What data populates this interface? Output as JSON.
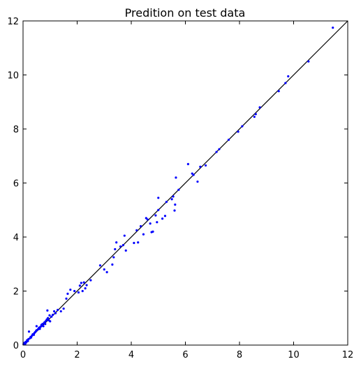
{
  "chart_data": {
    "type": "scatter",
    "title": "Predition on test data",
    "xlabel": "",
    "ylabel": "",
    "xlim": [
      0,
      12
    ],
    "ylim": [
      0,
      12
    ],
    "xticks": [
      0,
      2,
      4,
      6,
      8,
      10,
      12
    ],
    "yticks": [
      0,
      2,
      4,
      6,
      8,
      10,
      12
    ],
    "grid": false,
    "legend": "none",
    "point_color": "#0000ff",
    "line_color": "#000000",
    "reference_line": {
      "x": [
        0,
        12
      ],
      "y": [
        0,
        12
      ]
    },
    "series": [
      {
        "points": [
          [
            0.02,
            0.03
          ],
          [
            0.05,
            0.08
          ],
          [
            0.08,
            0.04
          ],
          [
            0.1,
            0.12
          ],
          [
            0.12,
            0.1
          ],
          [
            0.15,
            0.18
          ],
          [
            0.18,
            0.15
          ],
          [
            0.2,
            0.22
          ],
          [
            0.22,
            0.5
          ],
          [
            0.25,
            0.25
          ],
          [
            0.28,
            0.3
          ],
          [
            0.3,
            0.28
          ],
          [
            0.33,
            0.35
          ],
          [
            0.36,
            0.4
          ],
          [
            0.4,
            0.38
          ],
          [
            0.42,
            0.45
          ],
          [
            0.45,
            0.48
          ],
          [
            0.48,
            0.52
          ],
          [
            0.5,
            0.55
          ],
          [
            0.5,
            0.7
          ],
          [
            0.55,
            0.58
          ],
          [
            0.58,
            0.62
          ],
          [
            0.6,
            0.65
          ],
          [
            0.62,
            0.6
          ],
          [
            0.65,
            0.68
          ],
          [
            0.68,
            0.75
          ],
          [
            0.7,
            0.72
          ],
          [
            0.72,
            0.78
          ],
          [
            0.75,
            0.7
          ],
          [
            0.78,
            0.82
          ],
          [
            0.8,
            0.85
          ],
          [
            0.82,
            0.78
          ],
          [
            0.85,
            0.9
          ],
          [
            0.88,
            0.95
          ],
          [
            0.9,
            1.28
          ],
          [
            0.92,
            1.0
          ],
          [
            0.95,
            0.92
          ],
          [
            0.98,
            1.1
          ],
          [
            1.0,
            0.88
          ],
          [
            1.05,
            1.05
          ],
          [
            1.1,
            1.12
          ],
          [
            1.15,
            1.25
          ],
          [
            1.2,
            1.18
          ],
          [
            1.28,
            1.3
          ],
          [
            1.4,
            1.25
          ],
          [
            1.5,
            1.35
          ],
          [
            1.6,
            1.72
          ],
          [
            1.65,
            1.9
          ],
          [
            1.75,
            2.05
          ],
          [
            1.9,
            2.0
          ],
          [
            2.05,
            1.95
          ],
          [
            2.1,
            2.2
          ],
          [
            2.15,
            2.3
          ],
          [
            2.2,
            2.0
          ],
          [
            2.25,
            2.32
          ],
          [
            2.3,
            2.1
          ],
          [
            2.35,
            2.22
          ],
          [
            2.5,
            2.4
          ],
          [
            2.85,
            2.95
          ],
          [
            3.0,
            2.8
          ],
          [
            3.1,
            2.7
          ],
          [
            3.3,
            2.98
          ],
          [
            3.35,
            3.25
          ],
          [
            3.4,
            3.55
          ],
          [
            3.45,
            3.8
          ],
          [
            3.6,
            3.65
          ],
          [
            3.7,
            3.7
          ],
          [
            3.75,
            4.05
          ],
          [
            3.8,
            3.5
          ],
          [
            4.1,
            3.78
          ],
          [
            4.2,
            4.25
          ],
          [
            4.25,
            3.8
          ],
          [
            4.35,
            4.4
          ],
          [
            4.45,
            4.1
          ],
          [
            4.55,
            4.7
          ],
          [
            4.6,
            4.65
          ],
          [
            4.7,
            4.5
          ],
          [
            4.75,
            4.18
          ],
          [
            4.8,
            4.2
          ],
          [
            4.9,
            4.8
          ],
          [
            4.95,
            4.55
          ],
          [
            5.0,
            5.0
          ],
          [
            5.0,
            5.45
          ],
          [
            5.15,
            4.68
          ],
          [
            5.25,
            4.78
          ],
          [
            5.3,
            5.3
          ],
          [
            5.5,
            5.4
          ],
          [
            5.55,
            5.5
          ],
          [
            5.6,
            4.98
          ],
          [
            5.62,
            5.2
          ],
          [
            5.65,
            6.2
          ],
          [
            5.75,
            5.75
          ],
          [
            6.1,
            6.7
          ],
          [
            6.25,
            6.35
          ],
          [
            6.3,
            6.3
          ],
          [
            6.45,
            6.05
          ],
          [
            6.55,
            6.6
          ],
          [
            6.75,
            6.65
          ],
          [
            7.15,
            7.15
          ],
          [
            7.25,
            7.25
          ],
          [
            7.6,
            7.6
          ],
          [
            7.95,
            7.9
          ],
          [
            8.1,
            8.1
          ],
          [
            8.55,
            8.45
          ],
          [
            8.6,
            8.55
          ],
          [
            8.75,
            8.8
          ],
          [
            9.45,
            9.4
          ],
          [
            9.7,
            9.7
          ],
          [
            9.8,
            9.95
          ],
          [
            10.55,
            10.5
          ],
          [
            11.45,
            11.75
          ]
        ]
      }
    ]
  }
}
